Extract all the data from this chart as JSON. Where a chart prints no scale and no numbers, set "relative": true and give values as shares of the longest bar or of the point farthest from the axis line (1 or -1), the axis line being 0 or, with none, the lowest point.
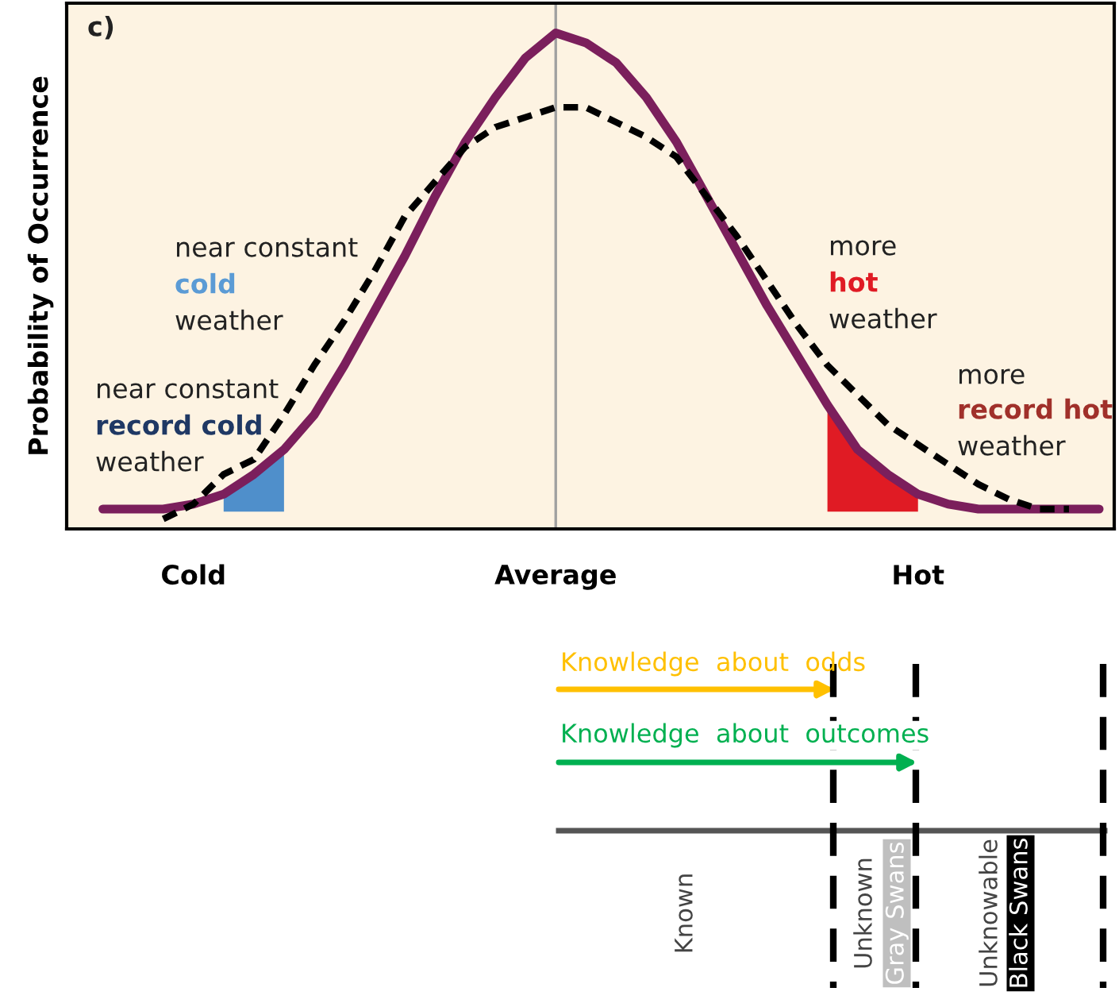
{
  "chart_data": [
    {
      "type": "line",
      "relative": true,
      "ylabel": "Probability of Occurrence",
      "categories": [
        null,
        null,
        null,
        "Cold",
        null,
        null,
        null,
        null,
        null,
        null,
        null,
        null,
        null,
        null,
        null,
        "Average",
        null,
        null,
        null,
        null,
        null,
        null,
        null,
        null,
        null,
        null,
        null,
        "Hot",
        null,
        null,
        null,
        null,
        null,
        null
      ],
      "series": [
        {
          "color": "#4f8fcb",
          "type": "area",
          "values": [
            null,
            null,
            null,
            null,
            0.07,
            0.11,
            0.16,
            null,
            null,
            null,
            null,
            null,
            null,
            null,
            null,
            null,
            null,
            null,
            null,
            null,
            null,
            null,
            null,
            null,
            null,
            null,
            null,
            null,
            null,
            null,
            null,
            null,
            null,
            null
          ]
        },
        {
          "color": "#e01b24",
          "type": "area",
          "values": [
            null,
            null,
            null,
            null,
            null,
            null,
            null,
            null,
            null,
            null,
            null,
            null,
            null,
            null,
            null,
            null,
            null,
            null,
            null,
            null,
            null,
            null,
            null,
            null,
            0.25,
            0.16,
            0.11,
            0.07,
            null,
            null,
            null,
            null,
            null,
            null
          ]
        },
        {
          "color": "#7b1f5c",
          "line_style": "solid",
          "values": [
            0.04,
            0.04,
            0.04,
            0.05,
            0.07,
            0.11,
            0.16,
            0.23,
            0.33,
            0.44,
            0.55,
            0.67,
            0.78,
            0.87,
            0.95,
            1,
            0.98,
            0.94,
            0.87,
            0.78,
            0.67,
            0.56,
            0.45,
            0.35,
            0.25,
            0.16,
            0.11,
            0.07,
            0.05,
            0.04,
            0.04,
            0.04,
            0.04,
            0.04
          ]
        },
        {
          "color": "#000000",
          "line_style": "dashed",
          "values": [
            null,
            null,
            0.02,
            0.05,
            0.11,
            0.14,
            0.23,
            0.33,
            0.42,
            0.52,
            0.63,
            0.7,
            0.77,
            0.81,
            0.83,
            0.85,
            0.85,
            0.82,
            0.79,
            0.75,
            0.67,
            0.59,
            0.5,
            0.41,
            0.33,
            0.27,
            0.21,
            0.17,
            0.13,
            0.09,
            0.06,
            0.04,
            0.04,
            null
          ]
        }
      ],
      "ref_lines": [
        {
          "axis": "x",
          "value": "Average",
          "color": "#a0a0a0"
        }
      ],
      "grid": false,
      "legend": false,
      "annotations": [
        "c)",
        "near constant",
        "cold",
        "weather",
        "near constant",
        "record cold",
        "weather",
        "more",
        "hot",
        "weather",
        "more",
        "record hot",
        "weather"
      ]
    },
    {
      "type": "other",
      "annotations": [
        "Knowledge  about  odds",
        "Knowledge  about  outcomes",
        "Known",
        "Unknown",
        "Gray Swans",
        "Unknowable",
        "Black Swans"
      ]
    }
  ]
}
